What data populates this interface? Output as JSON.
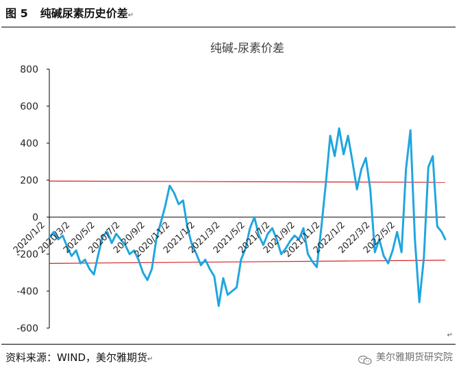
{
  "header": {
    "figure_number": "图 5",
    "figure_title": "纯碱尿素历史价差",
    "return_mark": "↵"
  },
  "footer": {
    "source": "资料来源：WIND，美尔雅期货",
    "return_mark": "↵",
    "watermark": "美尔雅期货研究院",
    "watermark_icon": "wechat-icon"
  },
  "colors": {
    "series": "#1fa6e0",
    "reference_lines": "#d21f1f",
    "axis": "#000000",
    "text": "#404040"
  },
  "chart_data": {
    "type": "line",
    "title": "纯碱-尿素价差",
    "ylim": [
      -600,
      800
    ],
    "yticks": [
      -600,
      -400,
      -200,
      0,
      200,
      400,
      600,
      800
    ],
    "xticks": [
      "2020/1/2",
      "2020/3/2",
      "2020/5/2",
      "2020/7/2",
      "2020/9/2",
      "2020/11/2",
      "2021/1/2",
      "2021/3/2",
      "2021/5/2",
      "2021/7/2",
      "2021/9/2",
      "2021/11/2",
      "2022/1/2",
      "2022/3/2",
      "2022/5/2"
    ],
    "xlim": [
      "2020-01-02",
      "2022-06-08"
    ],
    "legend": "none",
    "grid": false,
    "reference_lines": [
      {
        "x_start": "2020-01-02",
        "y_start": 195,
        "x_end": "2022-06-08",
        "y_end": 188
      },
      {
        "x_start": "2020-01-02",
        "y_start": -250,
        "x_end": "2022-06-08",
        "y_end": -233
      }
    ],
    "series": [
      {
        "x": [
          "2020-01-02",
          "2020-01-12",
          "2020-01-22",
          "2020-02-01",
          "2020-02-11",
          "2020-02-21",
          "2020-03-02",
          "2020-03-12",
          "2020-03-22",
          "2020-04-01",
          "2020-04-11",
          "2020-04-21",
          "2020-05-01",
          "2020-05-11",
          "2020-05-21",
          "2020-05-31",
          "2020-06-10",
          "2020-06-20",
          "2020-06-30",
          "2020-07-10",
          "2020-07-20",
          "2020-07-30",
          "2020-08-09",
          "2020-08-19",
          "2020-08-29",
          "2020-09-08",
          "2020-09-18",
          "2020-09-28",
          "2020-10-08",
          "2020-10-18",
          "2020-10-28",
          "2020-11-07",
          "2020-11-17",
          "2020-11-27",
          "2020-12-07",
          "2020-12-17",
          "2020-12-27",
          "2021-01-06",
          "2021-01-16",
          "2021-01-26",
          "2021-02-05",
          "2021-02-15",
          "2021-02-25",
          "2021-03-07",
          "2021-03-17",
          "2021-03-27",
          "2021-04-06",
          "2021-04-16",
          "2021-04-26",
          "2021-05-06",
          "2021-05-16",
          "2021-05-26",
          "2021-06-05",
          "2021-06-15",
          "2021-06-25",
          "2021-07-05",
          "2021-07-15",
          "2021-07-25",
          "2021-08-04",
          "2021-08-14",
          "2021-08-24",
          "2021-09-03",
          "2021-09-13",
          "2021-09-23",
          "2021-10-03",
          "2021-10-13",
          "2021-10-23",
          "2021-11-02",
          "2021-11-12",
          "2021-11-22",
          "2021-12-02",
          "2021-12-12",
          "2021-12-22",
          "2022-01-01",
          "2022-01-11",
          "2022-01-21",
          "2022-01-31",
          "2022-02-10",
          "2022-02-20",
          "2022-03-02",
          "2022-03-12",
          "2022-03-22",
          "2022-04-01",
          "2022-04-11",
          "2022-04-21",
          "2022-05-01",
          "2022-05-11",
          "2022-05-21",
          "2022-05-31",
          "2022-06-08"
        ],
        "values": [
          -110,
          -80,
          -120,
          -100,
          -160,
          -210,
          -180,
          -250,
          -230,
          -280,
          -310,
          -200,
          -100,
          -80,
          -140,
          -90,
          -120,
          -150,
          -200,
          -180,
          -230,
          -300,
          -340,
          -280,
          -120,
          -30,
          60,
          170,
          130,
          70,
          90,
          -60,
          -150,
          -200,
          -260,
          -230,
          -280,
          -320,
          -480,
          -330,
          -420,
          -400,
          -380,
          -230,
          -170,
          -60,
          0,
          -100,
          -150,
          -90,
          -60,
          -120,
          -200,
          -170,
          -130,
          -100,
          -120,
          -60,
          -200,
          -240,
          -270,
          -60,
          180,
          440,
          330,
          480,
          340,
          440,
          300,
          150,
          260,
          320,
          150,
          -190,
          -120,
          -210,
          -250,
          -180,
          -80,
          -190,
          260,
          470,
          -120,
          -460,
          -220,
          270,
          330,
          -50,
          -80,
          -120
        ]
      }
    ]
  }
}
